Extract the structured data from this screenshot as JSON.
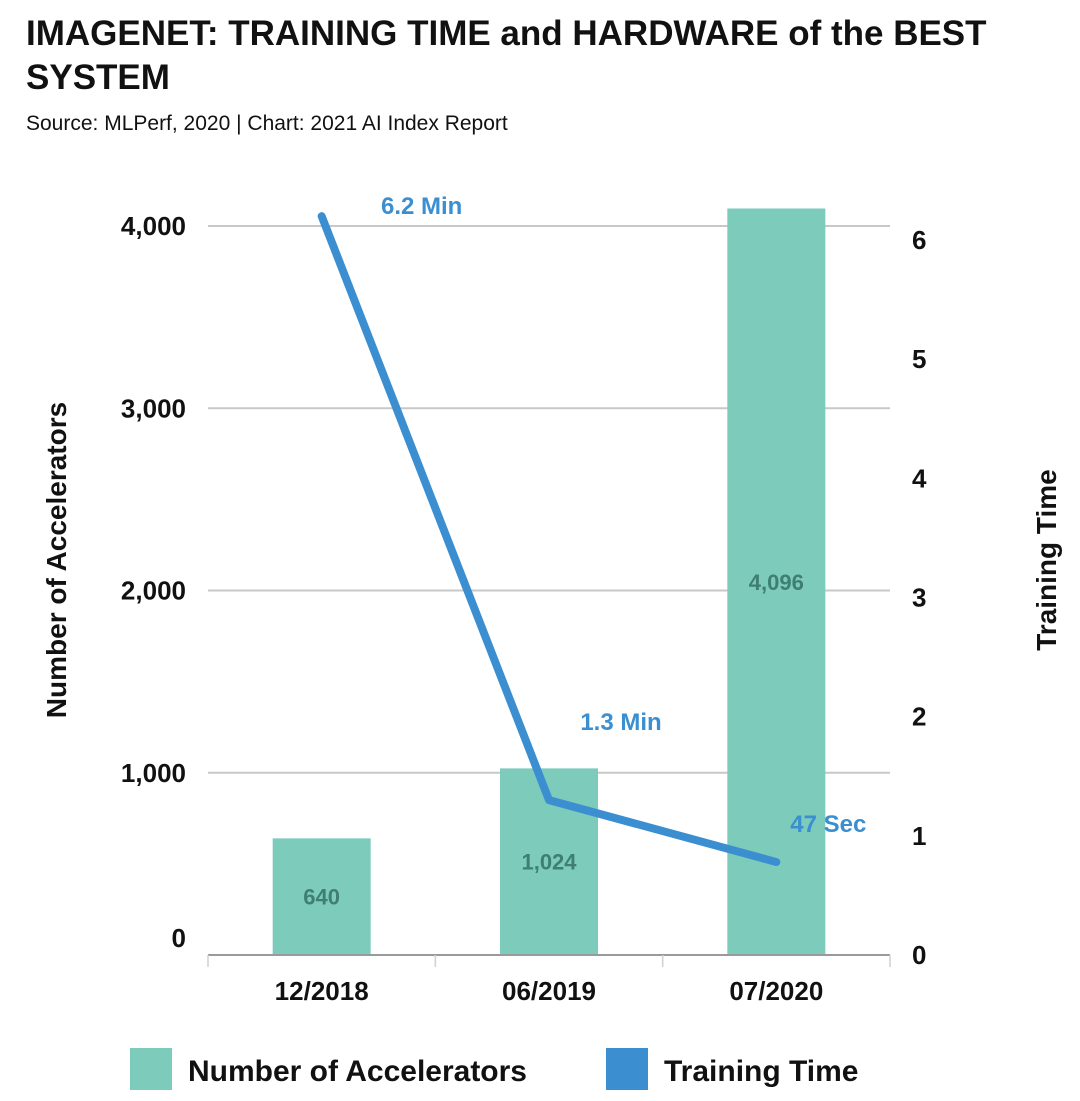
{
  "header": {
    "title": "IMAGENET: TRAINING TIME and HARDWARE of the BEST SYSTEM",
    "source": "Source: MLPerf, 2020 | Chart: 2021 AI Index Report"
  },
  "chart_data": {
    "type": "bar",
    "categories": [
      "12/2018",
      "06/2019",
      "07/2020"
    ],
    "series": [
      {
        "name": "Number of Accelerators",
        "type": "bar",
        "axis": "left",
        "color": "#7ccbbb",
        "values": [
          640,
          1024,
          4096
        ],
        "labels": [
          "640",
          "1,024",
          "4,096"
        ]
      },
      {
        "name": "Training Time",
        "type": "line",
        "axis": "right",
        "color": "#3b8fd0",
        "values": [
          6.2,
          1.3,
          0.78
        ],
        "labels": [
          "6.2 Min",
          "1.3 Min",
          "47 Sec"
        ]
      }
    ],
    "ylabel": "Number of Accelerators",
    "ylim": [
      0,
      4000
    ],
    "yticks": [
      0,
      1000,
      2000,
      3000,
      4000
    ],
    "yticklabels": [
      "0",
      "1,000",
      "2,000",
      "3,000",
      "4,000"
    ],
    "y2label": "Training Time",
    "y2lim": [
      0,
      6
    ],
    "y2ticks": [
      0,
      1,
      2,
      3,
      4,
      5,
      6
    ],
    "y2ticklabels": [
      "0",
      "1",
      "2",
      "3",
      "4",
      "5",
      "6"
    ],
    "grid": true,
    "legend_position": "bottom"
  }
}
